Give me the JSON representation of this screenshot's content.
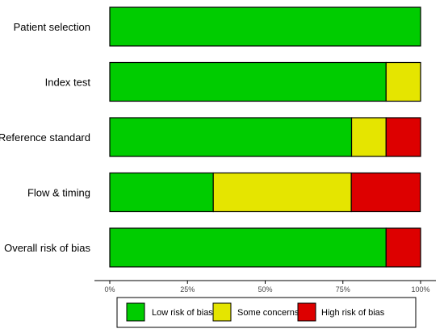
{
  "chart_data": {
    "type": "bar",
    "orientation": "horizontal",
    "stacked": true,
    "categories": [
      "Patient selection",
      "Index test",
      "Reference standard",
      "Flow & timing",
      "Overall risk of bias"
    ],
    "series": [
      {
        "name": "Low risk of bias",
        "color": "#00cc00",
        "values": [
          100,
          88.9,
          77.8,
          33.3,
          88.9
        ]
      },
      {
        "name": "Some concerns",
        "color": "#e5e500",
        "values": [
          0,
          11.1,
          11.1,
          44.4,
          0
        ]
      },
      {
        "name": "High risk of bias",
        "color": "#dd0000",
        "values": [
          0,
          0,
          11.1,
          22.2,
          11.1
        ]
      }
    ],
    "xlim": [
      0,
      100
    ],
    "xticks": [
      0,
      25,
      50,
      75,
      100
    ],
    "xtick_labels": [
      "0%",
      "25%",
      "50%",
      "75%",
      "100%"
    ],
    "legend_position": "bottom",
    "grid": false
  }
}
